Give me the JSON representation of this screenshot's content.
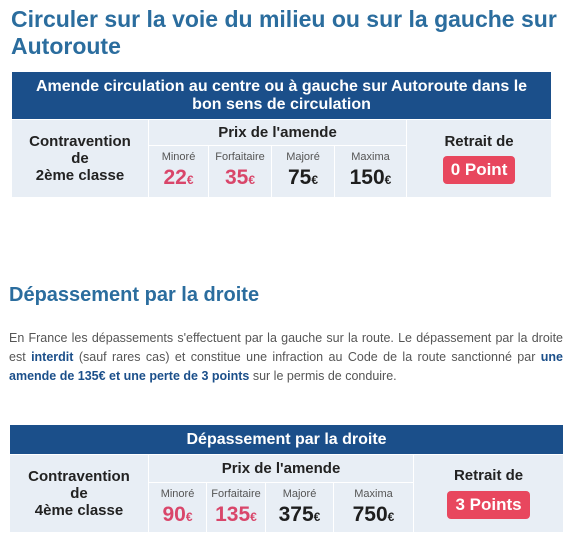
{
  "title": "Circuler sur la voie du milieu ou sur la gauche sur Autoroute",
  "table1": {
    "header": "Amende circulation au centre ou à gauche sur Autoroute dans le bon sens de circulation",
    "class_line1": "Contravention",
    "class_line2": "de",
    "class_line3": "2ème classe",
    "price_header": "Prix de l'amende",
    "minore_label": "Minoré",
    "minore_value": "22",
    "forfaitaire_label": "Forfaitaire",
    "forfaitaire_value": "35",
    "majore_label": "Majoré",
    "majore_value": "75",
    "maxima_label": "Maxima",
    "maxima_value": "150",
    "currency": "€",
    "retrait_label": "Retrait de",
    "points": "0 Point"
  },
  "section2_title": "Dépassement par la droite",
  "paragraph": {
    "p1": "En France les dépassements s'effectuent par la gauche sur la route. Le dépassement par la droite est ",
    "p2": "interdit",
    "p3": " (sauf rares cas) et constitue une infraction au Code de la route sanctionné par ",
    "p4": "une amende de 135€ et une perte de 3 points",
    "p5": " sur le permis de conduire."
  },
  "table2": {
    "header": "Dépassement par la droite",
    "class_line1": "Contravention",
    "class_line2": "de",
    "class_line3": "4ème classe",
    "price_header": "Prix de l'amende",
    "minore_label": "Minoré",
    "minore_value": "90",
    "forfaitaire_label": "Forfaitaire",
    "forfaitaire_value": "135",
    "majore_label": "Majoré",
    "majore_value": "375",
    "maxima_label": "Maxima",
    "maxima_value": "750",
    "currency": "€",
    "retrait_label": "Retrait de",
    "points": "3 Points"
  },
  "colors": {
    "heading": "#2b6d9e",
    "table_header": "#1b4f8a",
    "cell_bg": "#e8eef5",
    "badge": "#e8475e",
    "price_pink": "#d9466a"
  }
}
